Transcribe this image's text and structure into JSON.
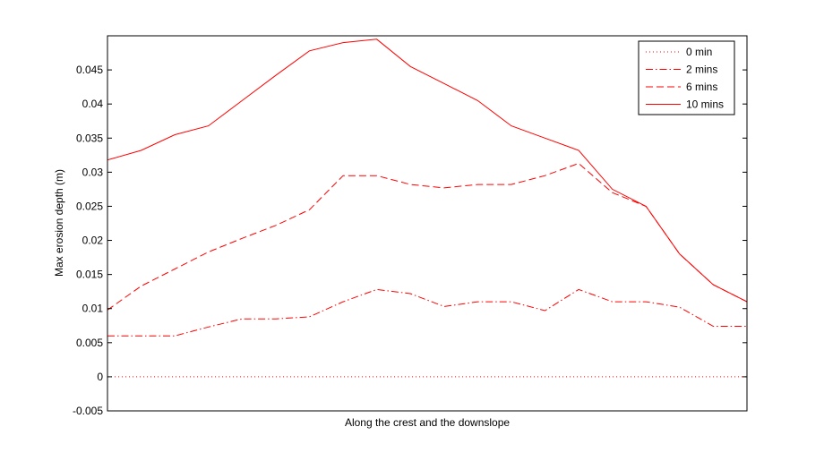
{
  "chart_data": {
    "type": "line",
    "title": "",
    "xlabel": "Along the crest and the downslope",
    "ylabel": "Max erosion depth  (m)",
    "xlim": [
      0,
      19
    ],
    "ylim": [
      -0.005,
      0.05
    ],
    "yticks": [
      -0.005,
      0,
      0.005,
      0.01,
      0.015,
      0.02,
      0.025,
      0.03,
      0.035,
      0.04,
      0.045
    ],
    "ytick_labels": [
      "-0.005",
      "0",
      "0.005",
      "0.01",
      "0.015",
      "0.02",
      "0.025",
      "0.03",
      "0.035",
      "0.04",
      "0.045"
    ],
    "x_tick_labels_shown": false,
    "grid": false,
    "legend_position": "top-right",
    "line_color": "#ff0000",
    "x": [
      0,
      1,
      2,
      3,
      4,
      5,
      6,
      7,
      8,
      9,
      10,
      11,
      12,
      13,
      14,
      15,
      16,
      17,
      18,
      19
    ],
    "series": [
      {
        "name": "0 min",
        "style": "dotted",
        "values": [
          0,
          0,
          0,
          0,
          0,
          0,
          0,
          0,
          0,
          0,
          0,
          0,
          0,
          0,
          0,
          0,
          0,
          0,
          0,
          0
        ]
      },
      {
        "name": "2 mins",
        "style": "dash-dot",
        "values": [
          0.006,
          0.006,
          0.006,
          0.0073,
          0.0085,
          0.0085,
          0.0088,
          0.011,
          0.0128,
          0.0122,
          0.0103,
          0.011,
          0.011,
          0.0097,
          0.0128,
          0.011,
          0.011,
          0.0102,
          0.0074,
          0.0074
        ]
      },
      {
        "name": "6 mins",
        "style": "dashed",
        "values": [
          0.0098,
          0.0133,
          0.0158,
          0.0183,
          0.0203,
          0.0222,
          0.0245,
          0.0295,
          0.0295,
          0.0282,
          0.0277,
          0.0282,
          0.0282,
          0.0295,
          0.0313,
          0.027,
          0.025,
          0.018,
          0.0135,
          0.011
        ]
      },
      {
        "name": "10 mins",
        "style": "solid",
        "values": [
          0.0318,
          0.0332,
          0.0355,
          0.0368,
          0.0405,
          0.0442,
          0.0478,
          0.049,
          0.0495,
          0.0455,
          0.043,
          0.0405,
          0.0368,
          0.035,
          0.0332,
          0.0275,
          0.025,
          0.018,
          0.0135,
          0.011
        ]
      }
    ]
  }
}
